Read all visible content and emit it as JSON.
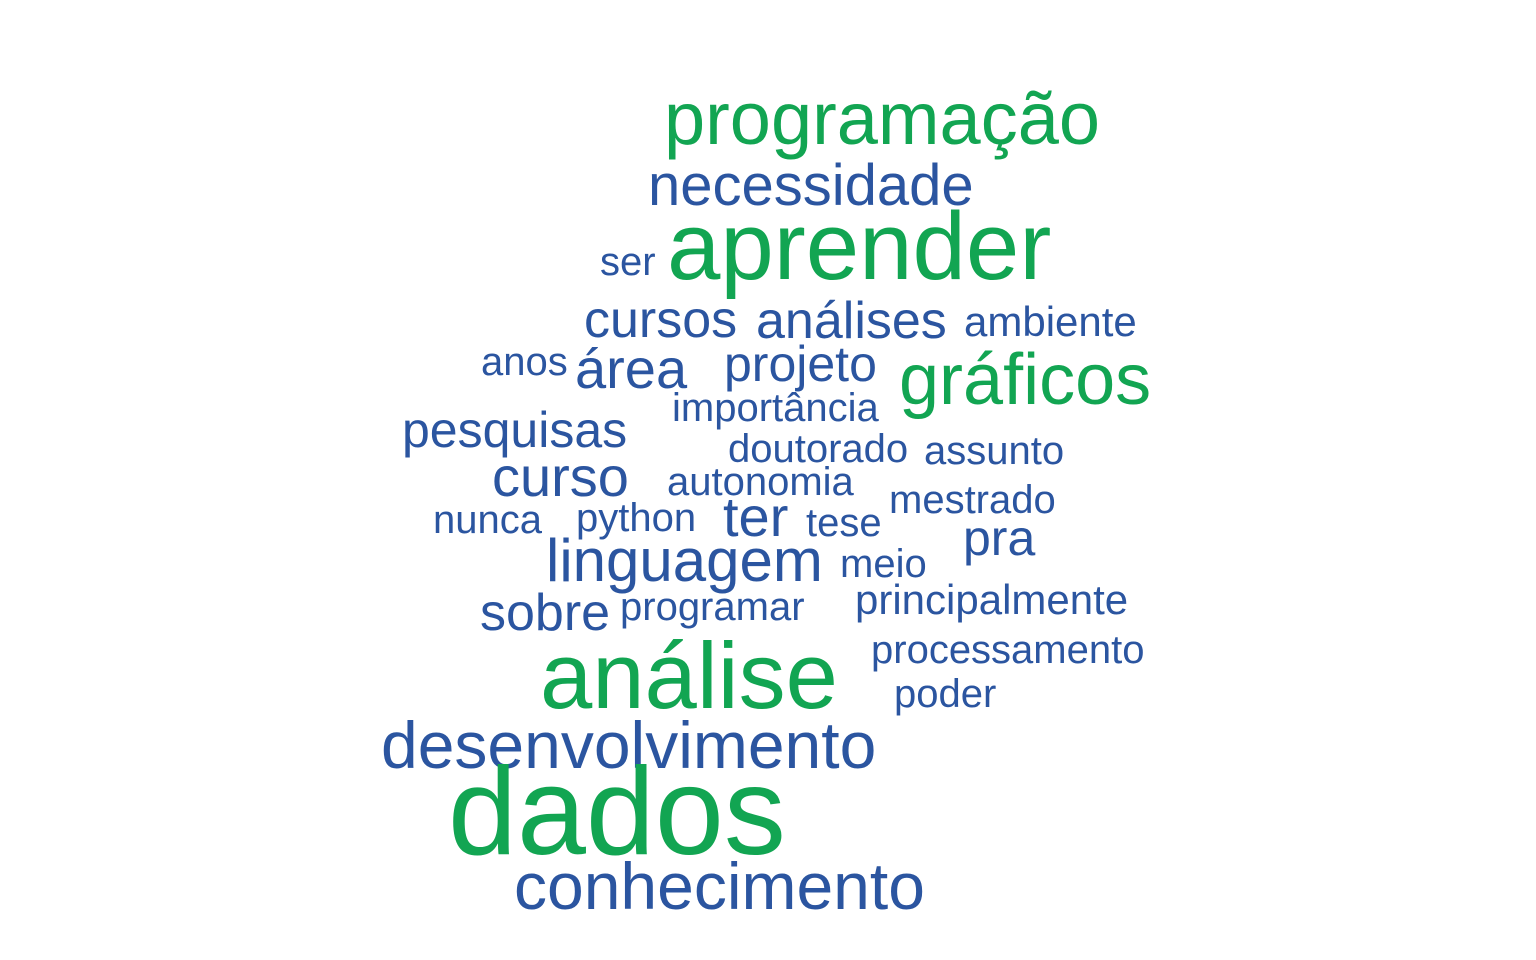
{
  "palette": {
    "highlight": "#12a552",
    "regular": "#2b55a0",
    "background": "#ffffff"
  },
  "words": [
    {
      "text": "programação",
      "group": "highlight"
    },
    {
      "text": "necessidade",
      "group": "regular"
    },
    {
      "text": "aprender",
      "group": "highlight"
    },
    {
      "text": "ser",
      "group": "regular"
    },
    {
      "text": "cursos",
      "group": "regular"
    },
    {
      "text": "análises",
      "group": "regular"
    },
    {
      "text": "ambiente",
      "group": "regular"
    },
    {
      "text": "anos",
      "group": "regular"
    },
    {
      "text": "área",
      "group": "regular"
    },
    {
      "text": "projeto",
      "group": "regular"
    },
    {
      "text": "gráficos",
      "group": "highlight"
    },
    {
      "text": "importância",
      "group": "regular"
    },
    {
      "text": "pesquisas",
      "group": "regular"
    },
    {
      "text": "doutorado",
      "group": "regular"
    },
    {
      "text": "assunto",
      "group": "regular"
    },
    {
      "text": "curso",
      "group": "regular"
    },
    {
      "text": "autonomia",
      "group": "regular"
    },
    {
      "text": "mestrado",
      "group": "regular"
    },
    {
      "text": "nunca",
      "group": "regular"
    },
    {
      "text": "python",
      "group": "regular"
    },
    {
      "text": "ter",
      "group": "regular"
    },
    {
      "text": "tese",
      "group": "regular"
    },
    {
      "text": "pra",
      "group": "regular"
    },
    {
      "text": "linguagem",
      "group": "regular"
    },
    {
      "text": "meio",
      "group": "regular"
    },
    {
      "text": "sobre",
      "group": "regular"
    },
    {
      "text": "programar",
      "group": "regular"
    },
    {
      "text": "principalmente",
      "group": "regular"
    },
    {
      "text": "análise",
      "group": "highlight"
    },
    {
      "text": "processamento",
      "group": "regular"
    },
    {
      "text": "poder",
      "group": "regular"
    },
    {
      "text": "desenvolvimento",
      "group": "regular"
    },
    {
      "text": "dados",
      "group": "highlight"
    },
    {
      "text": "conhecimento",
      "group": "regular"
    }
  ]
}
